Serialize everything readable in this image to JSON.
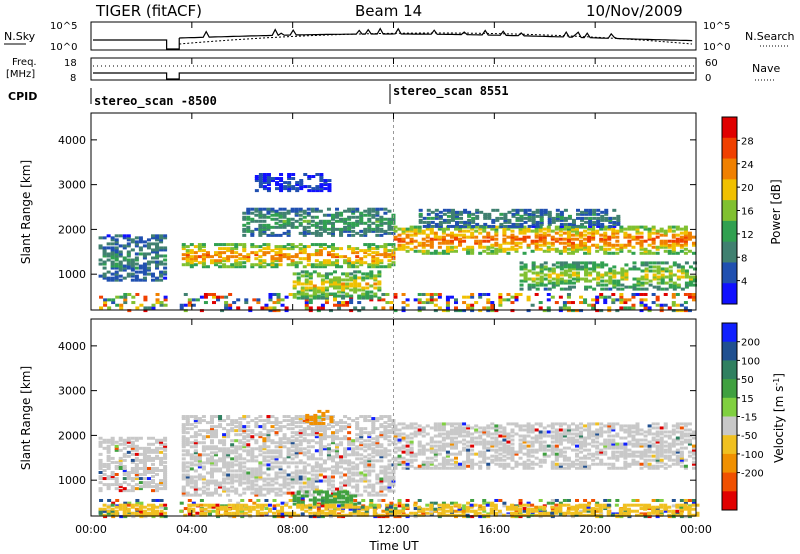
{
  "header": {
    "title": "TIGER (fitACF)",
    "beam": "Beam 14",
    "date": "10/Nov/2009"
  },
  "nsky_panel": {
    "label": "N.Sky",
    "left_ticks": [
      "10^5",
      "10^0"
    ],
    "right_ticks": [
      "10^5",
      "10^0"
    ],
    "right_label": "N.Search"
  },
  "freq_panel": {
    "label_line1": "Freq.",
    "label_line2": "[MHz]",
    "left_ticks": [
      "18",
      "8"
    ],
    "right_ticks": [
      "60",
      "0"
    ],
    "right_label": "Nave"
  },
  "cpid": {
    "label": "CPID",
    "programs": [
      {
        "name": "stereo_scan -8500",
        "start_hour": 0
      },
      {
        "name": "stereo_scan 8551",
        "start_hour": 12
      }
    ]
  },
  "chart_data": [
    {
      "type": "heatmap",
      "panel": "power",
      "ylabel": "Slant Range [km]",
      "yticks": [
        1000,
        2000,
        3000,
        4000
      ],
      "ylim": [
        200,
        4600
      ],
      "xlim": [
        0,
        24
      ],
      "xticks": [
        0,
        4,
        8,
        12,
        16,
        20,
        24
      ],
      "xticklabels": [
        "00:00",
        "04:00",
        "08:00",
        "12:00",
        "16:00",
        "20:00",
        "00:00"
      ],
      "xlabel": "Time UT",
      "colorbar": {
        "label": "Power [dB]",
        "ticks": [
          4,
          8,
          12,
          16,
          20,
          24,
          28
        ],
        "range": [
          0,
          32
        ],
        "colors": [
          "#1010ff",
          "#2050b0",
          "#408070",
          "#30a050",
          "#80c030",
          "#f0c000",
          "#f08000",
          "#f04000",
          "#e00000"
        ]
      },
      "data_gap_hours": [
        3.0,
        3.5
      ],
      "bands": [
        {
          "t0": 0.3,
          "t1": 2.9,
          "r0": 900,
          "r1": 1900,
          "level": 10
        },
        {
          "t0": 3.6,
          "t1": 12.0,
          "r0": 1200,
          "r1": 1700,
          "level": 24
        },
        {
          "t0": 6.0,
          "t1": 12.0,
          "r0": 1900,
          "r1": 2500,
          "level": 12
        },
        {
          "t0": 6.5,
          "t1": 9.5,
          "r0": 2900,
          "r1": 3300,
          "level": 5
        },
        {
          "t0": 8.0,
          "t1": 11.5,
          "r0": 500,
          "r1": 1100,
          "level": 20
        },
        {
          "t0": 12.0,
          "t1": 24.0,
          "r0": 1500,
          "r1": 2100,
          "level": 26
        },
        {
          "t0": 13.0,
          "t1": 21.0,
          "r0": 2100,
          "r1": 2500,
          "level": 10
        },
        {
          "t0": 17.0,
          "t1": 24.0,
          "r0": 700,
          "r1": 1300,
          "level": 18
        }
      ]
    },
    {
      "type": "heatmap",
      "panel": "velocity",
      "ylabel": "Slant Range [km]",
      "yticks": [
        1000,
        2000,
        3000,
        4000
      ],
      "ylim": [
        200,
        4600
      ],
      "xlim": [
        0,
        24
      ],
      "xticks": [
        0,
        4,
        8,
        12,
        16,
        20,
        24
      ],
      "xticklabels": [
        "00:00",
        "04:00",
        "08:00",
        "12:00",
        "16:00",
        "20:00",
        "00:00"
      ],
      "xlabel": "Time UT",
      "colorbar": {
        "label": "Velocity [m s^-1]",
        "ticks": [
          200,
          100,
          50,
          15,
          -15,
          -50,
          -100,
          -200
        ],
        "colors": [
          "#1020ff",
          "#205090",
          "#308060",
          "#40a040",
          "#80d040",
          "#c8c8c8",
          "#f0c020",
          "#f09000",
          "#f05000",
          "#e00000"
        ]
      },
      "data_gap_hours": [
        3.0,
        3.5
      ],
      "bands": [
        {
          "t0": 0.3,
          "t1": 2.9,
          "r0": 800,
          "r1": 2000,
          "level": 0
        },
        {
          "t0": 3.6,
          "t1": 12.0,
          "r0": 700,
          "r1": 2500,
          "level": 0
        },
        {
          "t0": 8.5,
          "t1": 9.5,
          "r0": 2300,
          "r1": 2600,
          "level": -60
        },
        {
          "t0": 8.0,
          "t1": 10.5,
          "r0": 500,
          "r1": 800,
          "level": 30
        },
        {
          "t0": 12.0,
          "t1": 24.0,
          "r0": 1300,
          "r1": 2300,
          "level": 0
        },
        {
          "t0": 0.3,
          "t1": 24.0,
          "r0": 250,
          "r1": 500,
          "level": -40
        }
      ]
    }
  ]
}
